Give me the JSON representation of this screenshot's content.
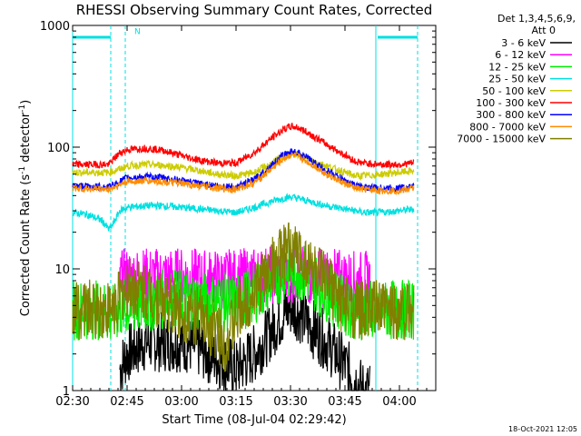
{
  "chart_data": {
    "type": "line",
    "title": "RHESSI Observing Summary Count Rates, Corrected",
    "xlabel": "Start Time (08-Jul-04 02:29:42)",
    "ylabel": "Corrected Count Rate (s",
    "ylabel_sup1": "-1",
    "ylabel_mid": " detector",
    "ylabel_sup2": "-1",
    "ylabel_end": ")",
    "x_unit": "minutes since 02:30 UT",
    "x_range": [
      0,
      100
    ],
    "y_scale": "log",
    "ylim": [
      1,
      1000
    ],
    "x_ticks": [
      {
        "label": "02:30",
        "value": 0
      },
      {
        "label": "02:45",
        "value": 15
      },
      {
        "label": "03:00",
        "value": 30
      },
      {
        "label": "03:15",
        "value": 45
      },
      {
        "label": "03:30",
        "value": 60
      },
      {
        "label": "03:45",
        "value": 75
      },
      {
        "label": "04:00",
        "value": 90
      }
    ],
    "y_ticks": [
      {
        "label": "1",
        "value": 1
      },
      {
        "label": "10",
        "value": 10
      },
      {
        "label": "100",
        "value": 100
      },
      {
        "label": "1000",
        "value": 1000
      }
    ],
    "legend": {
      "header": [
        "Det 1,3,4,5,6,9,",
        "Att 0"
      ],
      "position": "right"
    },
    "series": [
      {
        "name": "3 - 6 keV",
        "color": "#000000",
        "x": [
          13,
          15,
          20,
          25,
          30,
          35,
          40,
          45,
          50,
          55,
          58,
          60,
          62,
          65,
          70,
          75,
          78,
          80,
          82
        ],
        "y": [
          1.5,
          2.0,
          2.5,
          2.5,
          2.5,
          2.2,
          1.8,
          1.5,
          2.0,
          3.2,
          4.2,
          4.8,
          4.5,
          3.5,
          2.5,
          1.6,
          1.2,
          1.0,
          1.0
        ]
      },
      {
        "name": "6 - 12 keV",
        "color": "#ff00ff",
        "x": [
          13,
          15,
          20,
          25,
          30,
          35,
          40,
          45,
          50,
          55,
          58,
          60,
          62,
          65,
          70,
          75,
          78,
          80,
          82
        ],
        "y": [
          8,
          8.5,
          8.5,
          8.5,
          8.5,
          8.3,
          8.2,
          8.3,
          8.5,
          9.0,
          9.3,
          9.2,
          9.0,
          8.7,
          8.4,
          8.2,
          8.0,
          8.0,
          8.0
        ]
      },
      {
        "name": "12 - 25 keV",
        "color": "#00ee00",
        "x": [
          0,
          6,
          9,
          10,
          13,
          15,
          20,
          25,
          30,
          35,
          40,
          45,
          50,
          55,
          58,
          60,
          62,
          65,
          70,
          75,
          78,
          80,
          85,
          90,
          94
        ],
        "y": [
          4.6,
          4.6,
          4.6,
          4.0,
          4.6,
          4.8,
          5.2,
          5.6,
          5.7,
          5.5,
          5.3,
          5.2,
          6.2,
          8.0,
          9.5,
          10.0,
          9.8,
          8.5,
          6.5,
          5.0,
          4.6,
          4.6,
          4.6,
          4.6,
          4.6
        ]
      },
      {
        "name": "25 - 50 keV",
        "color": "#00e0e0",
        "x": [
          0,
          4,
          8,
          10,
          11,
          13,
          15,
          20,
          25,
          30,
          35,
          40,
          45,
          50,
          55,
          58,
          60,
          62,
          65,
          70,
          75,
          78,
          80,
          85,
          90,
          94
        ],
        "y": [
          29,
          28,
          25,
          21,
          23,
          30,
          32,
          33,
          33,
          32,
          31,
          30,
          29,
          32,
          36,
          38,
          39,
          38,
          36,
          33,
          31,
          30,
          29,
          29,
          30,
          31
        ]
      },
      {
        "name": "50 - 100 keV",
        "color": "#cccc00",
        "x": [
          0,
          10,
          13,
          15,
          20,
          25,
          30,
          35,
          40,
          45,
          50,
          55,
          58,
          60,
          62,
          65,
          70,
          75,
          78,
          80,
          85,
          90,
          94
        ],
        "y": [
          62,
          62,
          66,
          70,
          72,
          71,
          68,
          64,
          60,
          58,
          62,
          74,
          85,
          88,
          87,
          80,
          70,
          62,
          58,
          58,
          60,
          62,
          64
        ]
      },
      {
        "name": "100 - 300 keV",
        "color": "#ff0000",
        "x": [
          0,
          10,
          13,
          15,
          20,
          25,
          30,
          35,
          40,
          45,
          50,
          55,
          58,
          60,
          62,
          65,
          70,
          75,
          78,
          80,
          85,
          90,
          94
        ],
        "y": [
          72,
          72,
          90,
          95,
          98,
          94,
          85,
          78,
          74,
          74,
          90,
          120,
          140,
          148,
          145,
          130,
          105,
          86,
          76,
          74,
          72,
          72,
          74
        ]
      },
      {
        "name": "300 - 800 keV",
        "color": "#0000ff",
        "x": [
          0,
          10,
          13,
          15,
          20,
          25,
          30,
          35,
          40,
          45,
          50,
          55,
          58,
          60,
          62,
          65,
          70,
          75,
          78,
          80,
          85,
          90,
          94
        ],
        "y": [
          48,
          47,
          52,
          56,
          57,
          56,
          53,
          50,
          48,
          47,
          54,
          72,
          86,
          92,
          90,
          80,
          64,
          53,
          48,
          47,
          46,
          46,
          48
        ]
      },
      {
        "name": "800 - 7000 keV",
        "color": "#ff8c00",
        "x": [
          0,
          10,
          13,
          15,
          20,
          25,
          30,
          35,
          40,
          45,
          50,
          55,
          58,
          60,
          62,
          65,
          70,
          75,
          78,
          80,
          85,
          90,
          94
        ],
        "y": [
          46,
          45,
          49,
          52,
          53,
          52,
          50,
          48,
          46,
          45,
          51,
          67,
          80,
          86,
          84,
          75,
          60,
          50,
          46,
          45,
          44,
          44,
          46
        ]
      },
      {
        "name": "7000 - 15000 keV",
        "color": "#808000",
        "x": [
          0,
          6,
          10,
          13,
          15,
          20,
          25,
          30,
          35,
          40,
          42,
          45,
          50,
          55,
          58,
          60,
          62,
          65,
          70,
          75,
          78,
          80,
          85,
          90,
          94
        ],
        "y": [
          4.6,
          4.6,
          4.6,
          5.6,
          7.0,
          6.5,
          5.5,
          4.5,
          4.0,
          3.0,
          2.5,
          4.0,
          6.5,
          10.5,
          13.0,
          14.0,
          13.5,
          11.0,
          7.5,
          5.0,
          4.6,
          4.6,
          4.6,
          4.6,
          4.6
        ]
      }
    ],
    "annotations": [
      {
        "type": "bar",
        "color": "#00e0e0",
        "y": 800,
        "x_ranges": [
          [
            0,
            10.5
          ],
          [
            84,
            95
          ]
        ]
      },
      {
        "type": "vline",
        "color": "#00e0e0",
        "style": "solid",
        "x": [
          0,
          83.5
        ]
      },
      {
        "type": "vline",
        "color": "#00e0e0",
        "style": "dashed",
        "x": [
          10.5,
          14.5,
          95
        ]
      },
      {
        "type": "text",
        "color": "#00e0e0",
        "x": 17,
        "y": 850,
        "text": "N"
      }
    ],
    "footer_text": "18-Oct-2021 12:05"
  }
}
